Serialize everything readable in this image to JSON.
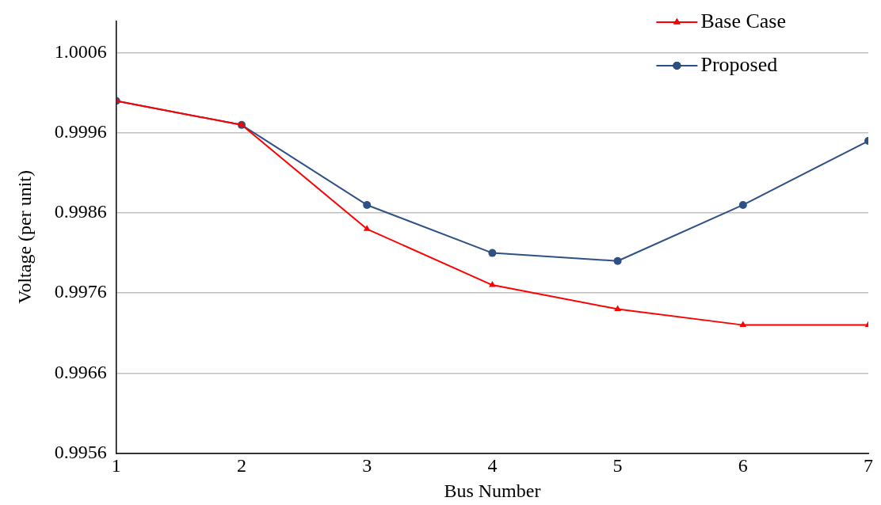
{
  "chart_data": {
    "type": "line",
    "xlabel": "Bus Number",
    "ylabel": "Voltage (per unit)",
    "x": [
      1,
      2,
      3,
      4,
      5,
      6,
      7
    ],
    "xlim": [
      1,
      7
    ],
    "xticks": [
      1,
      2,
      3,
      4,
      5,
      6,
      7
    ],
    "ylim": [
      0.9956,
      1.001
    ],
    "yticks": [
      0.9956,
      0.9966,
      0.9976,
      0.9986,
      0.9996,
      1.0006
    ],
    "grid": "y",
    "legend": "top right",
    "line_style": "solid",
    "series": [
      {
        "name": "Base Case",
        "color": "#ff0000",
        "marker": "triangle",
        "values": [
          1.0,
          0.9997,
          0.9984,
          0.9977,
          0.9974,
          0.9972,
          0.9972
        ]
      },
      {
        "name": "Proposed",
        "color": "#2e5185",
        "marker": "circle",
        "values": [
          1.0,
          0.9997,
          0.9987,
          0.9981,
          0.998,
          0.9987,
          0.9995
        ]
      }
    ]
  }
}
